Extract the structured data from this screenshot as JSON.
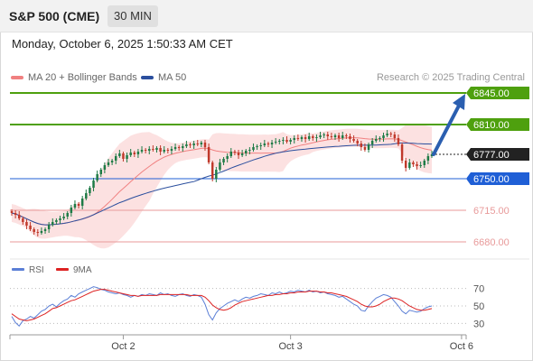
{
  "header": {
    "instrument": "S&P 500 (CME)",
    "timeframe": "30 MIN"
  },
  "datetime": "Monday, October 6, 2025 1:50:33 AM CET",
  "legend": {
    "bollinger_label": "MA 20 + Bollinger Bands",
    "ma50_label": "MA 50",
    "credit": "Research © 2025 Trading Central"
  },
  "colors": {
    "bollinger": "#f08080",
    "band_fill": "#fbdcdc",
    "ma50": "#2b4f9e",
    "resistance": "#4ea00e",
    "support": "#1f5fd6",
    "lower_level": "#e89a9a",
    "current": "#222222",
    "arrow": "#2b5fb0",
    "bull": "#1e7b46",
    "bear": "#c0392b",
    "rsi": "#5b7fd6",
    "rsi_ma": "#dd2222"
  },
  "rsi_legend": {
    "rsi_label": "RSI",
    "ma_label": "9MA"
  },
  "chart_data": {
    "type": "candlestick",
    "price_range": [
      6666,
      6852
    ],
    "levels": [
      {
        "value": 6845.0,
        "label": "6845.00",
        "kind": "resistance"
      },
      {
        "value": 6810.0,
        "label": "6810.00",
        "kind": "resistance"
      },
      {
        "value": 6777.0,
        "label": "6777.00",
        "kind": "current"
      },
      {
        "value": 6750.0,
        "label": "6750.00",
        "kind": "support"
      },
      {
        "value": 6715.0,
        "label": "6715.00",
        "kind": "lower"
      },
      {
        "value": 6680.0,
        "label": "6680.00",
        "kind": "lower"
      }
    ],
    "arrow": {
      "from": 6777,
      "to": 6840
    },
    "x_ticks": [
      "Oct 2",
      "Oct 3",
      "Oct 6"
    ],
    "x_tick_bars": [
      30,
      75,
      121
    ],
    "closes": [
      6712,
      6710,
      6706,
      6702,
      6698,
      6694,
      6691,
      6690,
      6692,
      6694,
      6699,
      6702,
      6704,
      6706,
      6708,
      6712,
      6718,
      6722,
      6720,
      6728,
      6734,
      6740,
      6748,
      6755,
      6760,
      6765,
      6768,
      6770,
      6775,
      6778,
      6772,
      6776,
      6779,
      6777,
      6780,
      6782,
      6781,
      6783,
      6782,
      6784,
      6780,
      6782,
      6781,
      6783,
      6785,
      6784,
      6786,
      6788,
      6787,
      6789,
      6788,
      6790,
      6785,
      6768,
      6750,
      6760,
      6768,
      6772,
      6775,
      6780,
      6779,
      6776,
      6778,
      6781,
      6782,
      6785,
      6786,
      6787,
      6789,
      6788,
      6790,
      6791,
      6792,
      6793,
      6791,
      6793,
      6795,
      6794,
      6796,
      6794,
      6797,
      6795,
      6796,
      6798,
      6799,
      6797,
      6796,
      6798,
      6795,
      6798,
      6797,
      6794,
      6792,
      6789,
      6785,
      6782,
      6788,
      6792,
      6794,
      6795,
      6798,
      6800,
      6799,
      6795,
      6788,
      6770,
      6762,
      6768,
      6766,
      6764,
      6765,
      6770,
      6775,
      6777
    ],
    "rsi": {
      "ylim": [
        20,
        80
      ],
      "ticks": [
        70,
        50,
        30
      ],
      "values": [
        38,
        31,
        27,
        33,
        35,
        38,
        36,
        40,
        44,
        46,
        50,
        52,
        49,
        53,
        56,
        58,
        62,
        60,
        64,
        66,
        68,
        70,
        72,
        71,
        69,
        68,
        66,
        65,
        64,
        65,
        63,
        62,
        60,
        62,
        61,
        63,
        62,
        64,
        63,
        62,
        65,
        63,
        64,
        62,
        61,
        63,
        64,
        62,
        61,
        63,
        62,
        60,
        52,
        40,
        34,
        42,
        47,
        50,
        53,
        55,
        57,
        55,
        58,
        60,
        59,
        61,
        62,
        64,
        63,
        62,
        65,
        64,
        66,
        64,
        65,
        67,
        66,
        68,
        67,
        66,
        68,
        66,
        67,
        65,
        66,
        64,
        63,
        62,
        60,
        61,
        58,
        55,
        52,
        50,
        45,
        44,
        50,
        55,
        59,
        61,
        63,
        62,
        60,
        55,
        50,
        44,
        41,
        45,
        44,
        43,
        44,
        47,
        49,
        50
      ],
      "ma": [
        41,
        38,
        35,
        34,
        33,
        34,
        35,
        37,
        39,
        41,
        44,
        47,
        48,
        50,
        52,
        54,
        56,
        57,
        59,
        61,
        63,
        65,
        67,
        68,
        69,
        69,
        68,
        67,
        66,
        65,
        64,
        63,
        62,
        62,
        61,
        62,
        62,
        62,
        62,
        62,
        63,
        63,
        63,
        63,
        63,
        63,
        63,
        63,
        62,
        62,
        62,
        62,
        60,
        56,
        51,
        48,
        46,
        45,
        46,
        48,
        51,
        53,
        55,
        56,
        57,
        58,
        59,
        60,
        61,
        62,
        62,
        63,
        63,
        64,
        64,
        65,
        65,
        66,
        66,
        66,
        67,
        67,
        67,
        66,
        66,
        65,
        65,
        64,
        63,
        62,
        61,
        59,
        57,
        55,
        52,
        50,
        49,
        49,
        50,
        52,
        55,
        57,
        59,
        59,
        58,
        56,
        53,
        50,
        48,
        46,
        45,
        45,
        46,
        47
      ]
    }
  }
}
